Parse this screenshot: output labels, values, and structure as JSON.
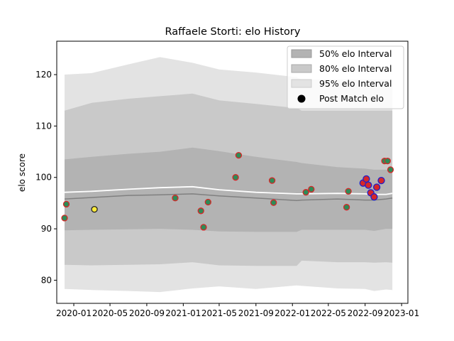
{
  "chart_data": {
    "type": "line",
    "title": "Raffaele Storti: elo History",
    "xlabel": "",
    "ylabel": "elo score",
    "xlim": [
      "2019-11-05",
      "2023-01-22"
    ],
    "ylim": [
      75.5,
      126.5
    ],
    "x_ticks": [
      "2020-01",
      "2020-05",
      "2020-09",
      "2021-01",
      "2021-05",
      "2021-09",
      "2022-01",
      "2022-05",
      "2022-09",
      "2023-01"
    ],
    "y_ticks": [
      80,
      90,
      100,
      110,
      120
    ],
    "grid": false,
    "legend_position": "top-right",
    "legend": [
      "50% elo Interval",
      "80% elo Interval",
      "95% elo Interval",
      "Post Match elo"
    ],
    "colors": {
      "band_50": "#b3b3b3",
      "band_80": "#c9c9c9",
      "band_95": "#e3e3e3",
      "median_line": "#808080",
      "mean_line": "#ffffff",
      "point_fill_default": "#2e8b57",
      "point_edge_default": "#d62728",
      "point_fill_alt": "#d62728",
      "point_edge_alt": "#1f1fcc",
      "point_fill_highlight": "#ffeb3b",
      "point_edge_highlight": "#222222"
    },
    "bands": {
      "x": [
        "2019-12-01",
        "2020-03-01",
        "2020-07-01",
        "2020-10-15",
        "2021-02-01",
        "2021-05-01",
        "2021-09-01",
        "2022-01-15",
        "2022-02-01",
        "2022-06-01",
        "2022-09-01",
        "2022-10-01",
        "2022-11-10",
        "2022-12-01"
      ],
      "p95_low": [
        78.3,
        78.1,
        77.9,
        77.7,
        78.4,
        78.8,
        78.3,
        79.0,
        78.9,
        78.4,
        78.3,
        77.9,
        78.2,
        78.1
      ],
      "p80_low": [
        83.0,
        82.9,
        83.0,
        83.1,
        83.5,
        82.9,
        82.8,
        82.8,
        83.8,
        83.5,
        83.5,
        83.4,
        83.5,
        83.4
      ],
      "p50_low": [
        89.7,
        89.8,
        89.9,
        90.0,
        89.8,
        89.5,
        89.4,
        89.4,
        89.8,
        89.8,
        89.8,
        89.6,
        90.0,
        90.0
      ],
      "p50_high": [
        103.5,
        104.0,
        104.6,
        105.0,
        105.8,
        105.1,
        104.0,
        103.0,
        102.8,
        102.0,
        101.7,
        101.5,
        101.5,
        101.2
      ],
      "p80_high": [
        113.0,
        114.5,
        115.3,
        115.8,
        116.3,
        115.0,
        114.3,
        113.5,
        113.0,
        113.0,
        113.0,
        113.0,
        113.0,
        113.0
      ],
      "p95_high": [
        120.0,
        120.3,
        122.0,
        123.4,
        122.3,
        121.0,
        120.4,
        119.5,
        119.0,
        119.0,
        119.0,
        119.0,
        119.0,
        119.0
      ],
      "median": [
        95.8,
        96.1,
        96.5,
        96.6,
        96.8,
        96.4,
        96.0,
        95.5,
        95.6,
        95.8,
        95.6,
        95.6,
        95.8,
        96.0
      ],
      "mean": [
        97.1,
        97.3,
        97.7,
        98.0,
        98.2,
        97.6,
        97.1,
        96.8,
        96.8,
        96.9,
        96.8,
        96.7,
        96.7,
        96.9
      ]
    },
    "points": [
      {
        "x": "2019-12-01",
        "y": 92.1,
        "style": "default"
      },
      {
        "x": "2019-12-07",
        "y": 94.8,
        "style": "default"
      },
      {
        "x": "2020-03-10",
        "y": 93.8,
        "style": "highlight"
      },
      {
        "x": "2020-12-05",
        "y": 96.0,
        "style": "default"
      },
      {
        "x": "2021-03-01",
        "y": 93.5,
        "style": "default"
      },
      {
        "x": "2021-03-10",
        "y": 90.3,
        "style": "default"
      },
      {
        "x": "2021-03-25",
        "y": 95.2,
        "style": "default"
      },
      {
        "x": "2021-06-25",
        "y": 100.0,
        "style": "default"
      },
      {
        "x": "2021-07-05",
        "y": 104.3,
        "style": "default"
      },
      {
        "x": "2021-10-25",
        "y": 99.4,
        "style": "default"
      },
      {
        "x": "2021-10-30",
        "y": 95.1,
        "style": "default"
      },
      {
        "x": "2022-02-15",
        "y": 97.1,
        "style": "default"
      },
      {
        "x": "2022-03-05",
        "y": 97.7,
        "style": "default"
      },
      {
        "x": "2022-07-01",
        "y": 94.2,
        "style": "default"
      },
      {
        "x": "2022-07-07",
        "y": 97.3,
        "style": "default"
      },
      {
        "x": "2022-08-25",
        "y": 98.9,
        "style": "alt"
      },
      {
        "x": "2022-09-05",
        "y": 99.7,
        "style": "alt"
      },
      {
        "x": "2022-09-12",
        "y": 98.5,
        "style": "alt"
      },
      {
        "x": "2022-09-20",
        "y": 97.0,
        "style": "alt"
      },
      {
        "x": "2022-10-01",
        "y": 96.2,
        "style": "alt"
      },
      {
        "x": "2022-10-10",
        "y": 98.1,
        "style": "alt"
      },
      {
        "x": "2022-10-25",
        "y": 99.4,
        "style": "alt"
      },
      {
        "x": "2022-11-05",
        "y": 103.2,
        "style": "default"
      },
      {
        "x": "2022-11-15",
        "y": 103.2,
        "style": "default"
      },
      {
        "x": "2022-11-25",
        "y": 101.5,
        "style": "default"
      }
    ]
  }
}
